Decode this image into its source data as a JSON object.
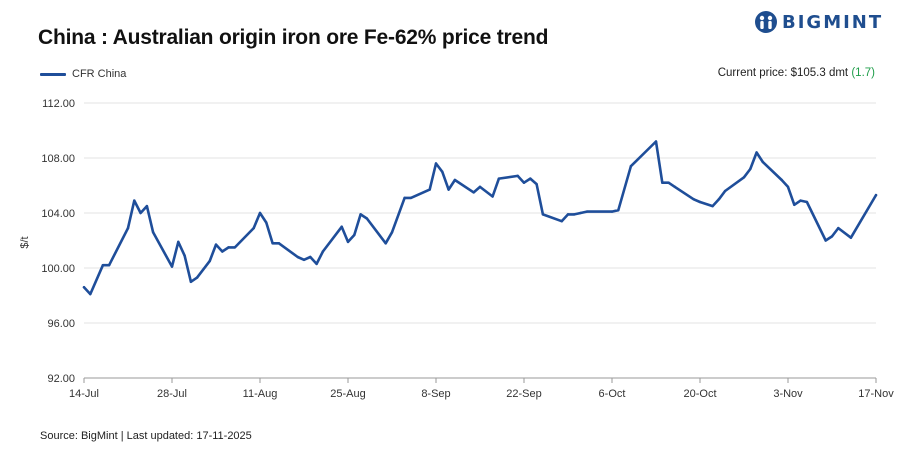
{
  "header": {
    "title": "China : Australian origin iron ore Fe-62% price trend",
    "logo_text": "BIGMINT",
    "logo_icon": "bigmint-people-icon",
    "brand_color": "#1f4e8f"
  },
  "legend": {
    "series_label": "CFR China",
    "color": "#1f4e9a"
  },
  "current_price": {
    "label": "Current price: $105.3 dmt",
    "change": "(1.7)",
    "change_color": "#1f9e4a"
  },
  "footer": {
    "source": "Source: BigMint | Last updated: 17-11-2025"
  },
  "chart_data": {
    "type": "line",
    "title": "China : Australian origin iron ore Fe-62% price trend",
    "xlabel": "",
    "ylabel": "$/t",
    "ylim": [
      92,
      112
    ],
    "yticks": [
      "112.00",
      "108.00",
      "104.00",
      "100.00",
      "96.00",
      "92.00"
    ],
    "ytick_values": [
      112,
      108,
      104,
      100,
      96,
      92
    ],
    "xticks": [
      "14-Jul",
      "28-Jul",
      "11-Aug",
      "25-Aug",
      "8-Sep",
      "22-Sep",
      "6-Oct",
      "20-Oct",
      "3-Nov",
      "17-Nov"
    ],
    "xtick_days": [
      0,
      14,
      28,
      42,
      56,
      70,
      84,
      98,
      112,
      126
    ],
    "grid": "horizontal",
    "legend_position": "top-left",
    "series": [
      {
        "name": "CFR China",
        "color": "#1f4e9a",
        "x": [
          0,
          1,
          3,
          4,
          7,
          8,
          9,
          10,
          11,
          14,
          15,
          16,
          17,
          18,
          20,
          21,
          22,
          23,
          24,
          27,
          28,
          29,
          30,
          31,
          34,
          35,
          36,
          37,
          38,
          41,
          42,
          43,
          44,
          45,
          48,
          49,
          51,
          52,
          55,
          56,
          57,
          58,
          59,
          62,
          63,
          65,
          66,
          69,
          70,
          71,
          72,
          73,
          76,
          77,
          78,
          79,
          80,
          84,
          85,
          87,
          91,
          92,
          93,
          94,
          97,
          98,
          100,
          101,
          102,
          105,
          106,
          107,
          108,
          111,
          112,
          113,
          114,
          115,
          118,
          119,
          120,
          122,
          126
        ],
        "values": [
          98.6,
          98.1,
          100.2,
          100.2,
          102.9,
          104.9,
          104.0,
          104.5,
          102.6,
          100.1,
          101.9,
          100.9,
          99.0,
          99.3,
          100.5,
          101.7,
          101.2,
          101.5,
          101.5,
          102.9,
          104.0,
          103.3,
          101.8,
          101.8,
          100.8,
          100.6,
          100.8,
          100.3,
          101.2,
          103.0,
          101.9,
          102.4,
          103.9,
          103.6,
          101.8,
          102.6,
          105.1,
          105.1,
          105.7,
          107.6,
          107.0,
          105.7,
          106.4,
          105.5,
          105.9,
          105.2,
          106.5,
          106.7,
          106.2,
          106.5,
          106.1,
          103.9,
          103.4,
          103.9,
          103.9,
          104.0,
          104.1,
          104.1,
          104.2,
          107.4,
          109.2,
          106.2,
          106.2,
          105.9,
          105.0,
          104.8,
          104.5,
          105.0,
          105.6,
          106.6,
          107.2,
          108.4,
          107.7,
          106.4,
          105.9,
          104.6,
          104.9,
          104.8,
          102.0,
          102.3,
          102.9,
          102.2,
          105.3
        ]
      }
    ]
  }
}
